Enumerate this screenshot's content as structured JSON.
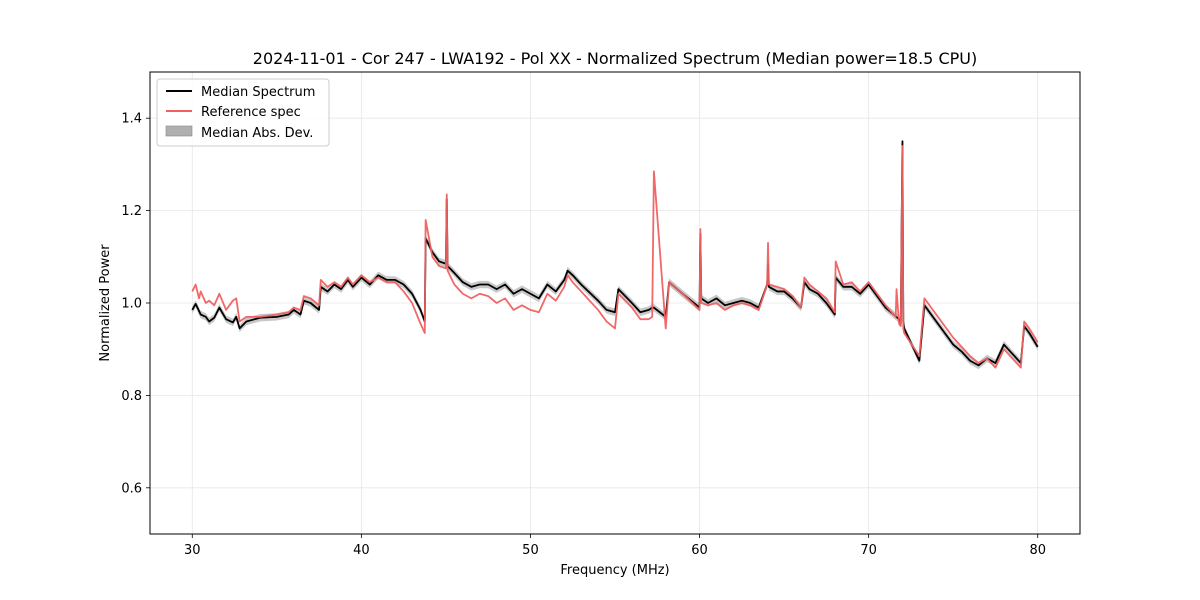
{
  "chart_data": {
    "type": "line",
    "title": "2024-11-01 - Cor 247 - LWA192 - Pol XX - Normalized Spectrum (Median power=18.5 CPU)",
    "xlabel": "Frequency (MHz)",
    "ylabel": "Normalized Power",
    "xlim": [
      27.5,
      82.5
    ],
    "ylim": [
      0.5,
      1.5
    ],
    "xticks": [
      30,
      40,
      50,
      60,
      70,
      80
    ],
    "yticks": [
      0.6,
      0.8,
      1.0,
      1.2,
      1.4
    ],
    "xtick_labels": [
      "30",
      "40",
      "50",
      "60",
      "70",
      "80"
    ],
    "ytick_labels": [
      "0.6",
      "0.8",
      "1.0",
      "1.2",
      "1.4"
    ],
    "grid": true,
    "legend_position": "top-left",
    "legend": [
      "Median Spectrum",
      "Reference spec",
      "Median Abs. Dev."
    ],
    "colors": {
      "median": "#000000",
      "reference": "#f06060",
      "mad": "#b0b0b0",
      "overlap": "#800000"
    },
    "mad_width": 0.008,
    "series": [
      {
        "name": "Median Spectrum",
        "x": [
          30.0,
          30.2,
          30.5,
          30.8,
          31.0,
          31.3,
          31.6,
          32.0,
          32.4,
          32.6,
          32.8,
          33.2,
          34.0,
          35.0,
          35.7,
          36.0,
          36.4,
          36.6,
          37.0,
          37.5,
          37.6,
          38.0,
          38.4,
          38.8,
          39.2,
          39.5,
          40.0,
          40.5,
          41.0,
          41.5,
          42.0,
          42.5,
          43.0,
          43.5,
          43.75,
          43.8,
          44.2,
          44.6,
          45.0,
          45.05,
          45.1,
          45.5,
          46.0,
          46.5,
          47.0,
          47.5,
          48.0,
          48.5,
          49.0,
          49.5,
          50.0,
          50.5,
          51.0,
          51.5,
          52.0,
          52.2,
          52.5,
          53.0,
          54.0,
          54.5,
          55.0,
          55.2,
          56.0,
          56.5,
          57.0,
          57.2,
          57.3,
          58.0,
          58.2,
          59.0,
          60.0,
          60.05,
          60.1,
          60.5,
          61.0,
          61.5,
          62.0,
          62.5,
          63.0,
          63.5,
          64.0,
          64.05,
          64.1,
          64.6,
          65.0,
          65.5,
          66.0,
          66.2,
          66.5,
          67.0,
          67.5,
          68.0,
          68.05,
          68.5,
          69.0,
          69.5,
          70.0,
          70.5,
          71.0,
          71.8,
          71.9,
          72.0,
          72.05,
          72.1,
          73.0,
          73.3,
          73.5,
          74.0,
          74.5,
          75.0,
          75.5,
          76.0,
          76.5,
          77.0,
          77.5,
          78.0,
          78.5,
          79.0,
          79.2,
          79.5,
          80.0
        ],
        "values": [
          0.985,
          0.998,
          0.975,
          0.97,
          0.96,
          0.968,
          0.99,
          0.965,
          0.958,
          0.97,
          0.945,
          0.96,
          0.968,
          0.97,
          0.975,
          0.985,
          0.975,
          1.005,
          1.0,
          0.985,
          1.035,
          1.025,
          1.04,
          1.03,
          1.05,
          1.035,
          1.055,
          1.04,
          1.06,
          1.05,
          1.05,
          1.04,
          1.02,
          0.985,
          0.96,
          1.14,
          1.11,
          1.09,
          1.085,
          1.225,
          1.08,
          1.065,
          1.045,
          1.035,
          1.04,
          1.04,
          1.03,
          1.04,
          1.02,
          1.03,
          1.02,
          1.01,
          1.04,
          1.025,
          1.05,
          1.07,
          1.06,
          1.04,
          1.005,
          0.985,
          0.98,
          1.03,
          1.0,
          0.98,
          0.985,
          0.99,
          0.99,
          0.97,
          1.045,
          1.02,
          0.99,
          1.15,
          1.01,
          1.0,
          1.01,
          0.995,
          1.0,
          1.005,
          1.0,
          0.99,
          1.04,
          1.085,
          1.035,
          1.025,
          1.025,
          1.01,
          0.99,
          1.045,
          1.03,
          1.02,
          1.0,
          0.975,
          1.055,
          1.035,
          1.035,
          1.02,
          1.04,
          1.015,
          0.99,
          0.965,
          0.955,
          1.35,
          0.96,
          0.945,
          0.875,
          0.995,
          0.985,
          0.96,
          0.935,
          0.91,
          0.895,
          0.875,
          0.865,
          0.88,
          0.87,
          0.91,
          0.89,
          0.87,
          0.95,
          0.935,
          0.905
        ]
      },
      {
        "name": "Reference spec",
        "x": [
          30.0,
          30.2,
          30.4,
          30.5,
          30.8,
          31.0,
          31.3,
          31.6,
          32.0,
          32.4,
          32.6,
          32.8,
          33.2,
          34.0,
          35.0,
          35.7,
          36.0,
          36.4,
          36.6,
          37.0,
          37.5,
          37.6,
          38.0,
          38.4,
          38.8,
          39.2,
          39.5,
          40.0,
          40.5,
          41.0,
          41.5,
          42.0,
          42.5,
          43.0,
          43.5,
          43.75,
          43.8,
          44.2,
          44.6,
          45.0,
          45.05,
          45.1,
          45.5,
          46.0,
          46.5,
          47.0,
          47.5,
          48.0,
          48.5,
          49.0,
          49.5,
          50.0,
          50.5,
          51.0,
          51.5,
          52.0,
          52.2,
          52.5,
          53.0,
          54.0,
          54.5,
          55.0,
          55.2,
          56.0,
          56.5,
          57.0,
          57.2,
          57.3,
          58.0,
          58.2,
          59.0,
          60.0,
          60.05,
          60.1,
          60.5,
          61.0,
          61.5,
          62.0,
          62.5,
          63.0,
          63.5,
          64.0,
          64.05,
          64.1,
          64.6,
          65.0,
          65.5,
          66.0,
          66.2,
          66.5,
          67.0,
          67.5,
          68.0,
          68.05,
          68.5,
          69.0,
          69.5,
          70.0,
          70.5,
          71.0,
          71.6,
          71.65,
          71.8,
          71.9,
          72.0,
          72.05,
          72.1,
          73.0,
          73.3,
          73.5,
          74.0,
          74.5,
          75.0,
          75.5,
          76.0,
          76.5,
          77.0,
          77.5,
          78.0,
          78.5,
          79.0,
          79.2,
          79.5,
          80.0
        ],
        "values": [
          1.025,
          1.04,
          1.01,
          1.025,
          1.0,
          1.005,
          0.995,
          1.02,
          0.985,
          1.005,
          1.01,
          0.96,
          0.97,
          0.97,
          0.975,
          0.98,
          0.99,
          0.985,
          1.015,
          1.01,
          0.995,
          1.05,
          1.035,
          1.045,
          1.035,
          1.055,
          1.04,
          1.06,
          1.045,
          1.055,
          1.045,
          1.045,
          1.025,
          1.0,
          0.955,
          0.935,
          1.18,
          1.1,
          1.08,
          1.075,
          1.235,
          1.07,
          1.04,
          1.02,
          1.01,
          1.02,
          1.015,
          1.0,
          1.01,
          0.985,
          0.995,
          0.985,
          0.98,
          1.02,
          1.005,
          1.035,
          1.06,
          1.045,
          1.025,
          0.985,
          0.96,
          0.945,
          1.02,
          0.99,
          0.965,
          0.965,
          0.97,
          1.285,
          0.945,
          1.045,
          1.02,
          0.985,
          1.16,
          1.0,
          0.995,
          1.0,
          0.985,
          0.995,
          1.0,
          0.995,
          0.985,
          1.04,
          1.13,
          1.04,
          1.035,
          1.03,
          1.015,
          0.99,
          1.055,
          1.04,
          1.025,
          1.01,
          0.98,
          1.09,
          1.04,
          1.045,
          1.025,
          1.045,
          1.02,
          0.995,
          0.97,
          1.03,
          0.955,
          0.95,
          1.34,
          0.945,
          0.935,
          0.885,
          1.01,
          1.0,
          0.975,
          0.95,
          0.925,
          0.905,
          0.885,
          0.87,
          0.88,
          0.86,
          0.9,
          0.88,
          0.86,
          0.96,
          0.945,
          0.915
        ]
      }
    ]
  }
}
